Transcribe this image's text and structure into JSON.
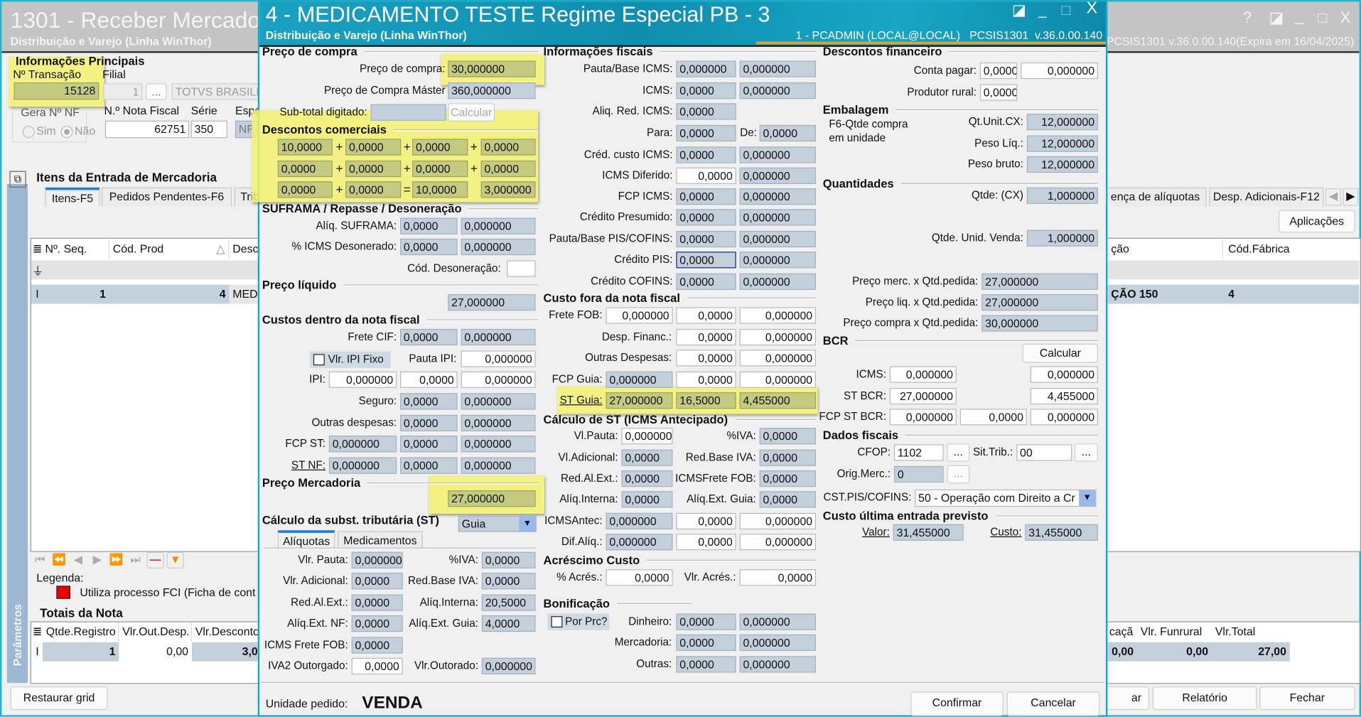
{
  "background_window": {
    "title": "1301 - Receber Mercado",
    "subtitle": "Distribuição e Varejo (Linha WinThor)",
    "version": "PCSIS1301  v.36.0.00.140(Expira em 16/04/2025)",
    "window_icons": [
      "?",
      "◪",
      "_",
      "□",
      "X"
    ],
    "info_title": "Informações Principais",
    "transacao_label": "Nº Transação",
    "transacao_value": "15128",
    "filial_label": "Filial",
    "filial_code": "1",
    "filial_lookup": "...",
    "filial_name": "TOTVS BRASILIA",
    "gera_nf_label": "Gera Nº NF",
    "gera_nf_options": [
      "Sim",
      "Não"
    ],
    "nota_label": "N.º Nota Fiscal",
    "nota_value": "62751",
    "serie_label": "Série",
    "serie_value": "350",
    "especie_label": "Espé",
    "especie_value": "NF",
    "items_title": "Itens da Entrada de Mercadoria",
    "tabs": [
      "Itens-F5",
      "Pedidos Pendentes-F6",
      "Trib"
    ],
    "right_tabs": [
      "ença de alíquotas",
      "Desp. Adicionais-F12"
    ],
    "aplicacoes_label": "Aplicações",
    "grid_columns": {
      "seq": "Nº. Seq.",
      "cod_prod": "Cód. Prod",
      "desc": "Desc",
      "right": "ção",
      "cod_fabrica": "Cód.Fábrica"
    },
    "grid_row": {
      "seq": "1",
      "cod_prod": "4",
      "desc": "MEDI",
      "right": "ÇÃO 150",
      "cod_fabrica": "4"
    },
    "legend_label": "Legenda:",
    "legend_item": "Utiliza processo FCI (Ficha de cont",
    "legend_color": "#ee0000",
    "totals_title": "Totais da Nota",
    "totals_columns": [
      "Qtde.Registro",
      "Vlr.Out.Desp.",
      "Vlr.Desconto"
    ],
    "totals_row": [
      "1",
      "0,00",
      "3,0"
    ],
    "right_totals_columns": [
      "caçã",
      "Vlr. Funrural",
      "Vlr.Total"
    ],
    "right_totals_row": [
      "0,00",
      "0,00",
      "27,00"
    ],
    "params_label": "Parâmetros",
    "restaurar_label": "Restaurar grid",
    "partial_button": "ar",
    "relatorio_label": "Relatório",
    "fechar_label": "Fechar"
  },
  "dialog": {
    "title": "4 - MEDICAMENTO TESTE Regime Especial PB - 3",
    "subtitle": "Distribuição e Varejo (Linha WinThor)",
    "user_info": "1 - PCADMIN (LOCAL@LOCAL)   PCSIS1301  v.36.0.00.140",
    "accent_color": "#1598b8",
    "highlight_color": "#f3f16e",
    "headers": {
      "pc_h": "Preço de compra",
      "desc_h": "Descontos comerciais",
      "suf_h": "SUFRAMA / Repasse / Desoneração",
      "pliq_h": "Preço líquido",
      "custos_h": "Custos dentro da nota fiscal",
      "pmerc_h": "Preço Mercadoria",
      "st_h": "Cálculo da subst. tributária (ST)",
      "info_h": "Informações fiscais",
      "cfora_h": "Custo fora da nota fiscal",
      "cst_h": "Cálculo de ST (ICMS Antecipado)",
      "acres_h": "Acréscimo Custo",
      "bonif_h": "Bonificação",
      "dfin_h": "Descontos financeiro",
      "emb_h": "Embalagem",
      "qtd_h": "Quantidades",
      "bcr_h": "BCR",
      "dfis_h": "Dados fiscais",
      "cue_h": "Custo última entrada previsto"
    },
    "descontos": {
      "rows": [
        [
          "10,0000",
          "0,0000",
          "0,0000",
          "0,0000"
        ],
        [
          "0,0000",
          "0,0000",
          "0,0000",
          "0,0000"
        ],
        [
          "0,0000",
          "0,0000",
          "10,0000",
          "3,000000"
        ]
      ],
      "ops": [
        [
          "+",
          "+",
          "+"
        ],
        [
          "+",
          "+",
          "+"
        ],
        [
          "+",
          "=",
          ""
        ]
      ]
    },
    "calcular_subtotal": "Calcular",
    "vlr_ipi_fixo": "Vlr. IPI Fixo",
    "st_mode": "Guia",
    "st_tabs": [
      "Alíquotas",
      "Medicamentos"
    ],
    "por_prc": "Por Prc?",
    "embalagem_note": [
      "F6-Qtde compra",
      "em unidade"
    ],
    "bcr_calcular": "Calcular",
    "lookup_button": "...",
    "cst_pis_cofins_label": "CST.PIS/COFINS:",
    "cst_pis_cofins_value": "50 - Operação com Direito a Cr",
    "fields": {
      "pc": {
        "label": "Preço de compra:",
        "values": [
          "30,000000"
        ]
      },
      "pcm": {
        "label": "Preço de Compra Máster",
        "values": [
          "360,000000"
        ]
      },
      "sub": {
        "label": "Sub-total digitado:",
        "values": [
          ""
        ]
      },
      "suf": {
        "label": "Alíq. SUFRAMA:",
        "values": [
          "0,0000",
          "0,000000"
        ]
      },
      "icd": {
        "label": "% ICMS Desonerado:",
        "values": [
          "0,0000",
          "0,000000"
        ]
      },
      "cdes": {
        "label": "Cód. Desoneração:",
        "values": [
          ""
        ]
      },
      "pliq": {
        "label": "",
        "values": [
          "27,000000"
        ]
      },
      "fcif": {
        "label": "Frete CIF:",
        "values": [
          "0,0000",
          "0,000000"
        ]
      },
      "pipi": {
        "label": "Pauta IPI:",
        "values": [
          "0,000000"
        ]
      },
      "ipi": {
        "label": "IPI:",
        "values": [
          "0,000000",
          "0,0000",
          "0,000000"
        ]
      },
      "seg": {
        "label": "Seguro:",
        "values": [
          "0,0000",
          "0,000000"
        ]
      },
      "odesp": {
        "label": "Outras despesas:",
        "values": [
          "0,0000",
          "0,000000"
        ]
      },
      "fcpst": {
        "label": "FCP ST:",
        "values": [
          "0,000000",
          "0,0000",
          "0,000000"
        ]
      },
      "stnf": {
        "label": "ST NF:",
        "values": [
          "0,000000",
          "0,0000",
          "0,000000"
        ]
      },
      "pmerc": {
        "label": "",
        "values": [
          "27,000000"
        ]
      },
      "vpauta": {
        "label": "Vlr. Pauta:",
        "values": [
          "0,000000"
        ]
      },
      "iva1": {
        "label": "%IVA:",
        "values": [
          "0,0000"
        ]
      },
      "vadic": {
        "label": "Vlr. Adicional:",
        "values": [
          "0,0000"
        ]
      },
      "rbiva1": {
        "label": "Red.Base IVA:",
        "values": [
          "0,0000"
        ]
      },
      "rale1": {
        "label": "Red.Al.Ext.:",
        "values": [
          "0,0000"
        ]
      },
      "aint1": {
        "label": "Alíq.Interna:",
        "values": [
          "20,5000"
        ]
      },
      "aenf": {
        "label": "Alíq.Ext. NF:",
        "values": [
          "0,0000"
        ]
      },
      "aeg1": {
        "label": "Alíq.Ext. Guia:",
        "values": [
          "4,0000"
        ]
      },
      "icfob1": {
        "label": "ICMS Frete FOB:",
        "values": [
          "0,0000"
        ]
      },
      "iva2": {
        "label": "IVA2 Outorgado:",
        "values": [
          "0,0000"
        ]
      },
      "vout": {
        "label": "Vlr.Outorado:",
        "values": [
          "0,000000"
        ]
      },
      "pbicms": {
        "label": "Pauta/Base ICMS:",
        "values": [
          "0,000000",
          "0,000000"
        ]
      },
      "icms": {
        "label": "ICMS:",
        "values": [
          "0,0000",
          "0,000000"
        ]
      },
      "aricms": {
        "label": "Aliq. Red. ICMS:",
        "values": [
          "0,0000"
        ]
      },
      "para": {
        "label": "Para:",
        "values": [
          "0,0000"
        ]
      },
      "de": {
        "label": "De:",
        "values": [
          "0,0000"
        ]
      },
      "ccicms": {
        "label": "Créd. custo ICMS:",
        "values": [
          "0,0000",
          "0,000000"
        ]
      },
      "icmsdif": {
        "label": "ICMS Diferido:",
        "values": [
          "0,0000",
          "0,000000"
        ]
      },
      "fcpicms": {
        "label": "FCP ICMS:",
        "values": [
          "0,0000",
          "0,000000"
        ]
      },
      "cpres": {
        "label": "Crédito Presumido:",
        "values": [
          "0,0000",
          "0,000000"
        ]
      },
      "pbpis": {
        "label": "Pauta/Base PIS/COFINS:",
        "values": [
          "0,0000",
          "0,000000"
        ]
      },
      "cpis": {
        "label": "Crédito PIS:",
        "values": [
          "0,0000",
          "0,000000"
        ]
      },
      "ccofins": {
        "label": "Crédito COFINS:",
        "values": [
          "0,0000",
          "0,000000"
        ]
      },
      "ffob": {
        "label": "Frete FOB:",
        "values": [
          "0,000000",
          "0,0000",
          "0,000000"
        ]
      },
      "dfin": {
        "label": "Desp. Financ.:",
        "values": [
          "0,0000",
          "0,000000"
        ]
      },
      "odesp2": {
        "label": "Outras Despesas:",
        "values": [
          "0,0000",
          "0,000000"
        ]
      },
      "fcpguia": {
        "label": "FCP Guia:",
        "values": [
          "0,000000",
          "0,0000",
          "0,000000"
        ]
      },
      "stguia": {
        "label": "ST Guia:",
        "values": [
          "27,000000",
          "16,5000",
          "4,455000"
        ]
      },
      "vlpauta": {
        "label": "Vl.Pauta:",
        "values": [
          "0,000000"
        ]
      },
      "iva3": {
        "label": "%IVA:",
        "values": [
          "0,0000"
        ]
      },
      "vladic": {
        "label": "Vl.Adicional:",
        "values": [
          "0,0000"
        ]
      },
      "rbiva3": {
        "label": "Red.Base IVA:",
        "values": [
          "0,0000"
        ]
      },
      "rale3": {
        "label": "Red.Al.Ext.:",
        "values": [
          "0,0000"
        ]
      },
      "icfob3": {
        "label": "ICMSFrete FOB:",
        "values": [
          "0,0000"
        ]
      },
      "aint3": {
        "label": "Alíq.Interna:",
        "values": [
          "0,0000"
        ]
      },
      "aeg3": {
        "label": "Alíq.Ext. Guia:",
        "values": [
          "0,0000"
        ]
      },
      "icmsantec": {
        "label": "ICMSAntec:",
        "values": [
          "0,000000",
          "0,0000",
          "0,000000"
        ]
      },
      "difaliq": {
        "label": "Dif.Alíq.:",
        "values": [
          "0,000000",
          "0,0000",
          "0,000000"
        ]
      },
      "pacres": {
        "label": "% Acrés.:",
        "values": [
          "0,0000"
        ]
      },
      "vacres": {
        "label": "Vlr. Acrés.:",
        "values": [
          "0,0000"
        ]
      },
      "dinheiro": {
        "label": "Dinheiro:",
        "values": [
          "0,0000",
          "0,000000"
        ]
      },
      "mercadoria": {
        "label": "Mercadoria:",
        "values": [
          "0,0000",
          "0,000000"
        ]
      },
      "outras": {
        "label": "Outras:",
        "values": [
          "0,0000",
          "0,000000"
        ]
      },
      "cpagar": {
        "label": "Conta pagar:",
        "values": [
          "0,0000",
          "0,000000"
        ]
      },
      "prural": {
        "label": "Produtor rural:",
        "values": [
          "0,0000"
        ]
      },
      "qtunit": {
        "label": "Qt.Unit.CX:",
        "values": [
          "12,000000"
        ]
      },
      "pliqemb": {
        "label": "Peso Líq.:",
        "values": [
          "12,000000"
        ]
      },
      "pbruto": {
        "label": "Peso bruto:",
        "values": [
          "12,000000"
        ]
      },
      "qtdcx": {
        "label": "Qtde: (CX)",
        "values": [
          "1,000000"
        ]
      },
      "qtdvenda": {
        "label": "Qtde. Unid. Venda:",
        "values": [
          "1,000000"
        ]
      },
      "pmq": {
        "label": "Preço merc. x Qtd.pedida:",
        "values": [
          "27,000000"
        ]
      },
      "plq": {
        "label": "Preço liq. x Qtd.pedida:",
        "values": [
          "27,000000"
        ]
      },
      "pcq": {
        "label": "Preço compra x Qtd.pedida:",
        "values": [
          "30,000000"
        ]
      },
      "bicms": {
        "label": "ICMS:",
        "values": [
          "0,000000",
          "0,000000"
        ]
      },
      "bst": {
        "label": "ST BCR:",
        "values": [
          "27,000000",
          "4,455000"
        ]
      },
      "bfcp": {
        "label": "FCP ST BCR:",
        "values": [
          "0,000000",
          "0,0000",
          "0,000000"
        ]
      },
      "cfop": {
        "label": "CFOP:",
        "values": [
          "1102"
        ]
      },
      "sittrib": {
        "label": "Sit.Trib.:",
        "values": [
          "00"
        ]
      },
      "origmerc": {
        "label": "Orig.Merc.:",
        "values": [
          "0"
        ]
      },
      "valor": {
        "label": "Valor:",
        "values": [
          "31,455000"
        ]
      },
      "custo": {
        "label": "Custo:",
        "values": [
          "31,455000"
        ]
      }
    },
    "footer": {
      "unidade_label": "Unidade pedido:",
      "unidade_value": "VENDA",
      "confirm_label": "Confirmar",
      "cancel_label": "Cancelar"
    }
  }
}
